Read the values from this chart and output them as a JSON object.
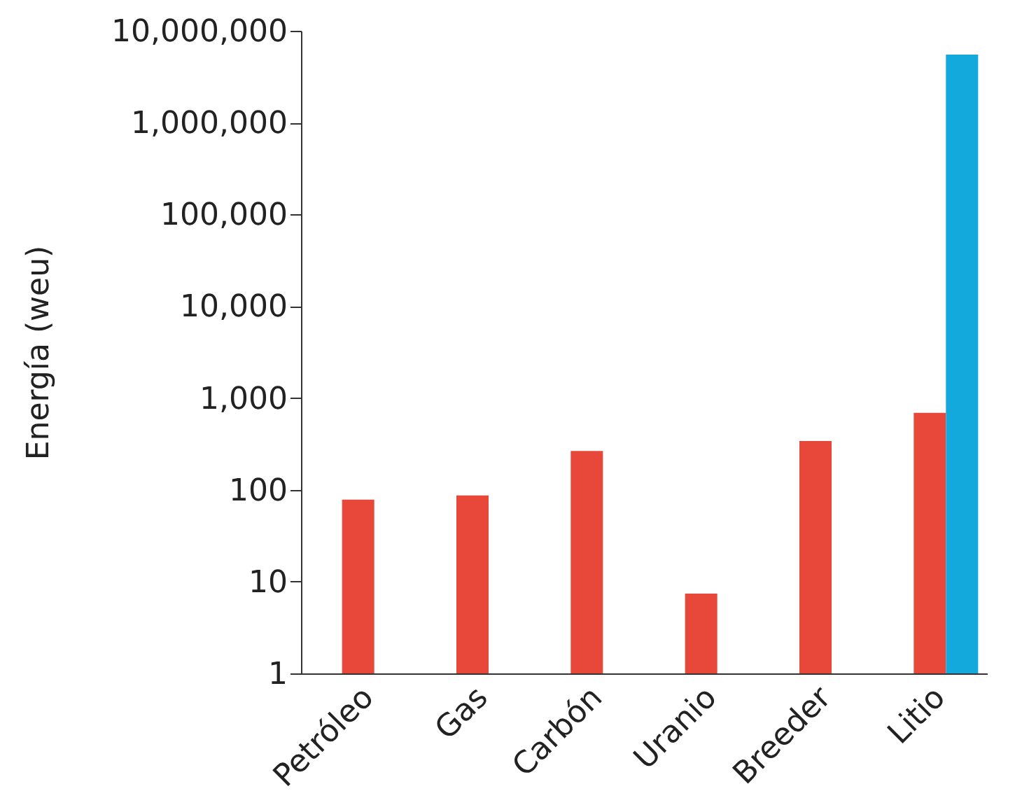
{
  "chart_data": {
    "type": "bar",
    "ylabel": "Energía (weu)",
    "categories": [
      "Petróleo",
      "Gas",
      "Carbón",
      "Uranio",
      "Breeder",
      "Litio"
    ],
    "series": [
      {
        "color": "#e8483a",
        "values": [
          78,
          87,
          265,
          7.4,
          340,
          690
        ]
      },
      {
        "color": "#14a9dc",
        "values": [
          null,
          null,
          null,
          null,
          null,
          5500000
        ]
      }
    ],
    "ylim": [
      1,
      10000000
    ],
    "yticks": [
      1,
      10,
      100,
      {
        "value": 1000,
        "label": "1,000"
      },
      {
        "value": 10000,
        "label": "10,000"
      },
      {
        "value": 100000,
        "label": "100,000"
      },
      {
        "value": 1000000,
        "label": "1,000,000"
      },
      {
        "value": 10000000,
        "label": "10,000,000"
      }
    ],
    "log": "y"
  }
}
